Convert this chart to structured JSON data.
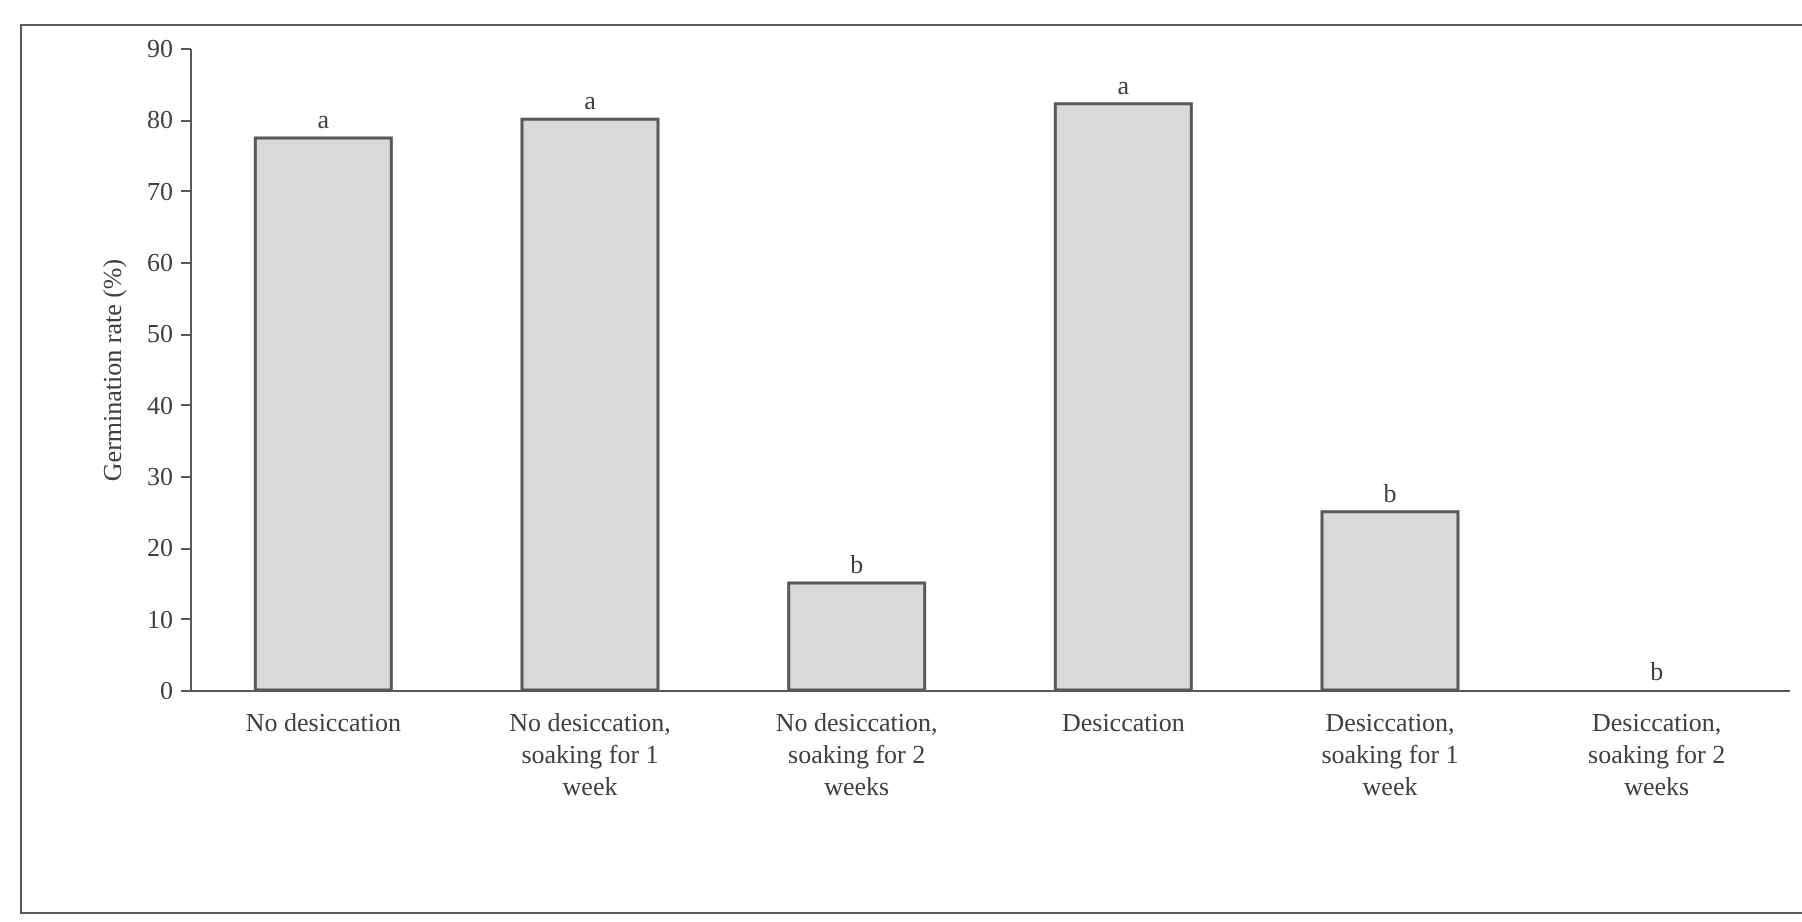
{
  "chart_data": {
    "type": "bar",
    "ylabel": "Germination rate (%)",
    "categories": [
      "No desiccation",
      "No desiccation, soaking for 1 week",
      "No desiccation, soaking for 2 weeks",
      "Desiccation",
      "Desiccation, soaking for 1 week",
      "Desiccation, soaking for 2 weeks"
    ],
    "values": [
      77.4,
      80,
      15,
      82.2,
      25,
      0
    ],
    "color": "#d9d9d9",
    "ylim": [
      0,
      90
    ],
    "yticks": [
      0,
      10,
      20,
      30,
      40,
      50,
      60,
      70,
      80,
      90
    ],
    "grid": false,
    "annotations": [
      {
        "text": "a",
        "x": "No desiccation",
        "y": 77.4
      },
      {
        "text": "a",
        "x": "No desiccation, soaking for 1 week",
        "y": 80
      },
      {
        "text": "b",
        "x": "No desiccation, soaking for 2 weeks",
        "y": 15
      },
      {
        "text": "a",
        "x": "Desiccation",
        "y": 82.2
      },
      {
        "text": "b",
        "x": "Desiccation, soaking for 1 week",
        "y": 25
      },
      {
        "text": "b",
        "x": "Desiccation, soaking for 2 weeks",
        "y": 0
      }
    ]
  }
}
